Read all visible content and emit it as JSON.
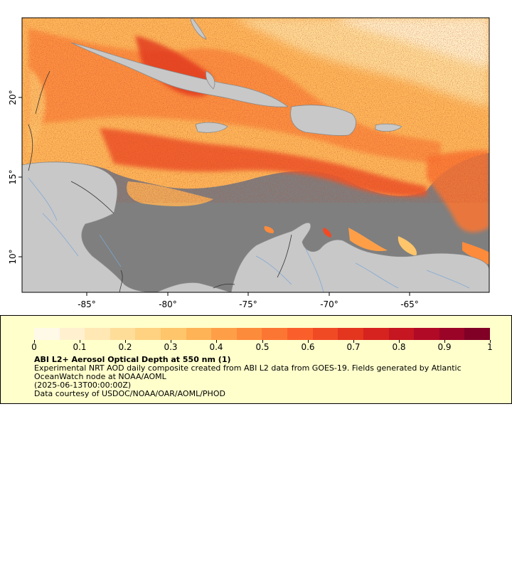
{
  "map": {
    "lon_ticks": [
      "-85°",
      "-80°",
      "-75°",
      "-70°",
      "-65°"
    ],
    "lat_ticks": [
      "10°",
      "15°",
      "20°"
    ],
    "colors": {
      "ocean_nodata": "#7f7f7f",
      "land": "#c8c8c8",
      "rivers": "#7aa6d6",
      "borders": "#8a8a8a"
    }
  },
  "legend": {
    "tick_labels": [
      "0",
      "0.1",
      "0.2",
      "0.3",
      "0.4",
      "0.5",
      "0.6",
      "0.7",
      "0.8",
      "0.9",
      "1"
    ],
    "title": "ABI L2+ Aerosol Optical Depth at 550 nm (1)",
    "description": "Experimental NRT AOD daily composite created from ABI L2 data from GOES-19. Fields generated by Atlantic OceanWatch node at NOAA/AOML",
    "date": "(2025-06-13T00:00:00Z)",
    "credit": "Data courtesy of USDOC/NOAA/OAR/AOML/PHOD",
    "colorbar": [
      "#fff9e8",
      "#fff1cf",
      "#ffe8b3",
      "#fedd99",
      "#fed281",
      "#fec56b",
      "#feb357",
      "#fe9f48",
      "#fd8b3c",
      "#fc7633",
      "#fa5f2b",
      "#f04a25",
      "#e4351f",
      "#d6231f",
      "#c51621",
      "#b10a26",
      "#9a0427",
      "#800026"
    ]
  }
}
